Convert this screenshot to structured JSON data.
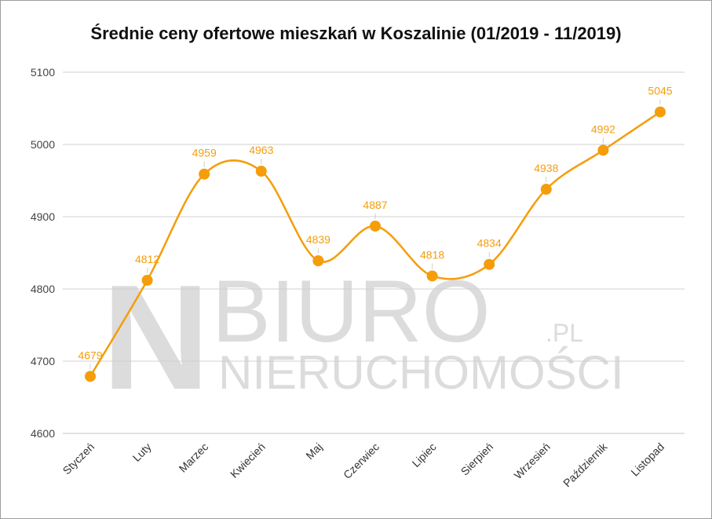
{
  "watermark": {
    "line1": "BIURO",
    "suffix": ".PL",
    "line2": "NIERUCHOMOŚCI",
    "mark": "N"
  },
  "chart_data": {
    "type": "line",
    "title": "Średnie ceny ofertowe mieszkań w Koszalinie (01/2019 - 11/2019)",
    "xlabel": "",
    "ylabel": "",
    "categories": [
      "Styczeń",
      "Luty",
      "Marzec",
      "Kwiecień",
      "Maj",
      "Czerwiec",
      "Lipiec",
      "Sierpień",
      "Wrzesień",
      "Październik",
      "Listopad"
    ],
    "series": [
      {
        "values": [
          4679,
          4812,
          4959,
          4963,
          4839,
          4887,
          4818,
          4834,
          4938,
          4992,
          5045
        ]
      }
    ],
    "data_labels": [
      "4679",
      "4812",
      "4959",
      "4963",
      "4839",
      "4887",
      "4818",
      "4834",
      "4938",
      "4992",
      "5045"
    ],
    "ylim": [
      4600,
      5100
    ],
    "yticks": [
      4600,
      4700,
      4800,
      4900,
      5000,
      5100
    ],
    "grid": true,
    "smooth": true,
    "line_color": "#f59d0b",
    "label_color": "#f59d0b",
    "grid_color": "#d0d0d0"
  }
}
